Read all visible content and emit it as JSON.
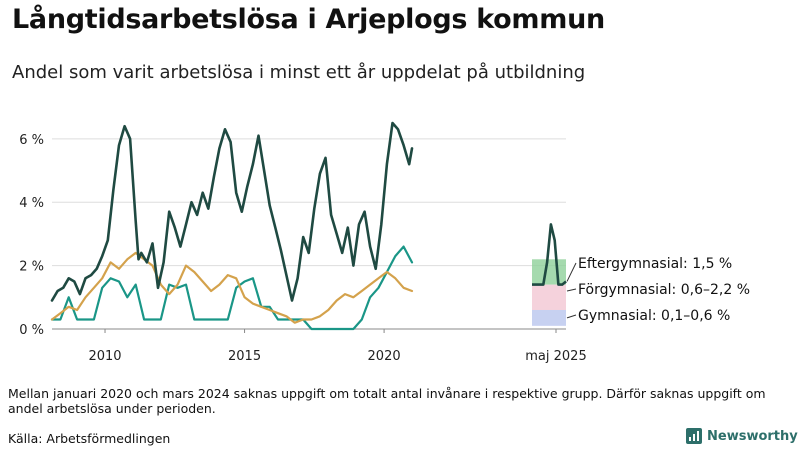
{
  "chart_data": {
    "type": "line",
    "title": "Långtidsarbetslösa i Arjeplogs kommun",
    "subtitle": "Andel som varit arbetslösa i minst ett år uppdelat på utbildning",
    "x_ticks": [
      "2010",
      "2015",
      "2020",
      "maj 2025"
    ],
    "y_ticks": [
      "0 %",
      "2 %",
      "4 %",
      "6 %"
    ],
    "ylim": [
      0,
      6.5
    ],
    "xlim": [
      2008.1,
      2021.0
    ],
    "grid": true,
    "series": [
      {
        "name": "Eftergymnasial",
        "color": "#1f4a42",
        "latest_label": "Eftergymnasial: 1,5 %",
        "x": [
          2008.1,
          2008.3,
          2008.5,
          2008.7,
          2008.9,
          2009.1,
          2009.3,
          2009.5,
          2009.7,
          2009.9,
          2010.1,
          2010.3,
          2010.5,
          2010.7,
          2010.9,
          2011.1,
          2011.2,
          2011.3,
          2011.5,
          2011.7,
          2011.9,
          2012.1,
          2012.3,
          2012.5,
          2012.7,
          2012.9,
          2013.1,
          2013.3,
          2013.5,
          2013.7,
          2013.9,
          2014.1,
          2014.3,
          2014.5,
          2014.7,
          2014.9,
          2015.1,
          2015.3,
          2015.5,
          2015.7,
          2015.9,
          2016.1,
          2016.3,
          2016.5,
          2016.7,
          2016.9,
          2017.1,
          2017.3,
          2017.5,
          2017.7,
          2017.9,
          2018.1,
          2018.3,
          2018.5,
          2018.7,
          2018.9,
          2019.1,
          2019.3,
          2019.5,
          2019.7,
          2019.9,
          2020.1,
          2020.3,
          2020.5,
          2020.7,
          2020.9,
          2021.0
        ],
        "values": [
          0.9,
          1.2,
          1.3,
          1.6,
          1.5,
          1.1,
          1.6,
          1.7,
          1.9,
          2.3,
          2.8,
          4.4,
          5.8,
          6.4,
          6.0,
          3.4,
          2.2,
          2.4,
          2.1,
          2.7,
          1.3,
          2.1,
          3.7,
          3.2,
          2.6,
          3.3,
          4.0,
          3.6,
          4.3,
          3.8,
          4.8,
          5.7,
          6.3,
          5.9,
          4.3,
          3.7,
          4.5,
          5.2,
          6.1,
          5.0,
          3.9,
          3.2,
          2.5,
          1.7,
          0.9,
          1.6,
          2.9,
          2.4,
          3.8,
          4.9,
          5.4,
          3.6,
          3.0,
          2.4,
          3.2,
          2.0,
          3.3,
          3.7,
          2.6,
          1.9,
          3.3,
          5.2,
          6.5,
          6.3,
          5.8,
          5.2,
          5.7
        ]
      },
      {
        "name": "Förgymnasial",
        "color": "#1a9687",
        "latest_label": "Förgymnasial: 0,6–2,2 %",
        "x": [
          2008.1,
          2008.4,
          2008.7,
          2009.0,
          2009.3,
          2009.6,
          2009.9,
          2010.2,
          2010.5,
          2010.8,
          2011.1,
          2011.4,
          2011.7,
          2012.0,
          2012.3,
          2012.6,
          2012.9,
          2013.2,
          2013.5,
          2013.8,
          2014.1,
          2014.4,
          2014.7,
          2015.0,
          2015.3,
          2015.6,
          2015.9,
          2016.2,
          2016.5,
          2016.8,
          2017.1,
          2017.4,
          2017.7,
          2018.0,
          2018.3,
          2018.6,
          2018.9,
          2019.2,
          2019.5,
          2019.8,
          2020.1,
          2020.4,
          2020.7,
          2021.0
        ],
        "values": [
          0.3,
          0.3,
          1.0,
          0.3,
          0.3,
          0.3,
          1.3,
          1.6,
          1.5,
          1.0,
          1.4,
          0.3,
          0.3,
          0.3,
          1.4,
          1.3,
          1.4,
          0.3,
          0.3,
          0.3,
          0.3,
          0.3,
          1.3,
          1.5,
          1.6,
          0.7,
          0.7,
          0.3,
          0.3,
          0.3,
          0.3,
          0.0,
          0.0,
          0.0,
          0.0,
          0.0,
          0.0,
          0.3,
          1.0,
          1.3,
          1.8,
          2.3,
          2.6,
          2.1
        ]
      },
      {
        "name": "Gymnasial",
        "color": "#d4a24c",
        "latest_label": "Gymnasial: 0,1–0,6 %",
        "x": [
          2008.1,
          2008.4,
          2008.7,
          2009.0,
          2009.3,
          2009.6,
          2009.9,
          2010.2,
          2010.5,
          2010.8,
          2011.1,
          2011.4,
          2011.7,
          2012.0,
          2012.3,
          2012.6,
          2012.9,
          2013.2,
          2013.5,
          2013.8,
          2014.1,
          2014.4,
          2014.7,
          2015.0,
          2015.3,
          2015.6,
          2015.9,
          2016.2,
          2016.5,
          2016.8,
          2017.1,
          2017.4,
          2017.7,
          2018.0,
          2018.3,
          2018.6,
          2018.9,
          2019.2,
          2019.5,
          2019.8,
          2020.1,
          2020.4,
          2020.7,
          2021.0
        ],
        "values": [
          0.3,
          0.5,
          0.7,
          0.6,
          1.0,
          1.3,
          1.6,
          2.1,
          1.9,
          2.2,
          2.4,
          2.2,
          2.0,
          1.4,
          1.1,
          1.4,
          2.0,
          1.8,
          1.5,
          1.2,
          1.4,
          1.7,
          1.6,
          1.0,
          0.8,
          0.7,
          0.6,
          0.5,
          0.4,
          0.2,
          0.3,
          0.3,
          0.4,
          0.6,
          0.9,
          1.1,
          1.0,
          1.2,
          1.4,
          1.6,
          1.8,
          1.6,
          1.3,
          1.2
        ]
      }
    ],
    "inset": {
      "label": "maj 2025",
      "bands": [
        {
          "lo": 1.4,
          "hi": 2.2,
          "color": "#8fd19a"
        },
        {
          "lo": 0.6,
          "hi": 1.4,
          "color": "#f3c7d3"
        },
        {
          "lo": 0.1,
          "hi": 0.6,
          "color": "#b9c5ee"
        }
      ],
      "line_values": [
        1.4,
        1.4,
        1.4,
        1.4,
        2.1,
        3.3,
        2.8,
        1.4,
        1.4,
        1.5
      ]
    }
  },
  "note": "Mellan januari 2020 och mars 2024 saknas uppgift om totalt antal invånare i respektive grupp. Därför saknas uppgift om andel arbetslösa under perioden.",
  "source": "Källa: Arbetsförmedlingen",
  "brand": {
    "name": "Newsworthy",
    "color": "#2d6f6a"
  }
}
